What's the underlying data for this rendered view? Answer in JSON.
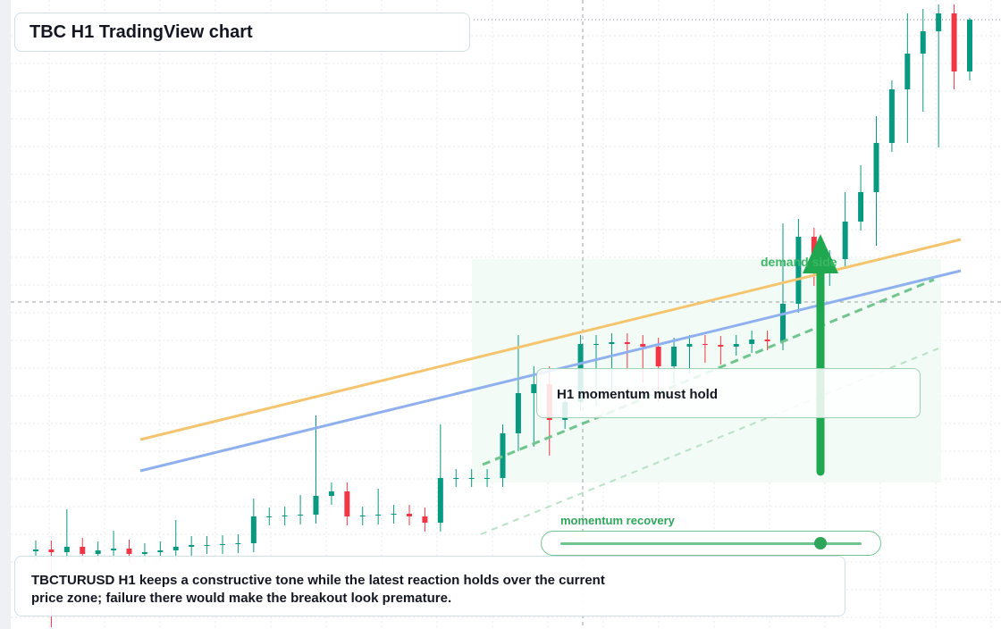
{
  "header": {
    "title": "TBC H1 TradingView chart"
  },
  "labels": {
    "zone": "demand side",
    "callout": "H1 momentum must hold",
    "slider": "momentum recovery"
  },
  "note": "TBCTURUSD H1 keeps a constructive tone while the latest reaction holds over the current price zone; failure there would make the breakout look premature.",
  "chart_data": {
    "type": "candlestick",
    "ylim": [
      0,
      704
    ],
    "up_color": "#089981",
    "down_color": "#f23645",
    "open": [
      87,
      89,
      86,
      92,
      84,
      88,
      90,
      84,
      86,
      88,
      92,
      94,
      94,
      95,
      96,
      126,
      126,
      127,
      128,
      149,
      154,
      126,
      127,
      128,
      129,
      126,
      119,
      169,
      169,
      169,
      169,
      219,
      264,
      274,
      234,
      254,
      319,
      319,
      321,
      319,
      316,
      294,
      316,
      319,
      318,
      316,
      319,
      324,
      322,
      364,
      439,
      404,
      414,
      456,
      489,
      544,
      604,
      644,
      669,
      689,
      624
    ],
    "high": [
      99,
      99,
      134,
      102,
      98,
      110,
      100,
      96,
      98,
      122,
      104,
      104,
      105,
      106,
      146,
      136,
      137,
      150,
      239,
      164,
      164,
      137,
      157,
      139,
      139,
      136,
      229,
      179,
      179,
      179,
      229,
      329,
      294,
      294,
      264,
      329,
      329,
      331,
      331,
      329,
      326,
      326,
      329,
      329,
      328,
      329,
      334,
      334,
      454,
      459,
      449,
      424,
      489,
      519,
      574,
      614,
      689,
      694,
      699,
      699,
      684
    ],
    "low": [
      77,
      2,
      76,
      74,
      74,
      78,
      74,
      74,
      76,
      78,
      82,
      84,
      84,
      85,
      86,
      116,
      116,
      117,
      118,
      139,
      116,
      116,
      117,
      118,
      116,
      109,
      109,
      159,
      159,
      159,
      159,
      199,
      204,
      194,
      224,
      244,
      249,
      259,
      289,
      276,
      254,
      274,
      286,
      298,
      296,
      306,
      309,
      312,
      312,
      354,
      384,
      384,
      404,
      446,
      429,
      534,
      544,
      579,
      539,
      604,
      614
    ],
    "close": [
      89,
      86,
      92,
      84,
      88,
      90,
      84,
      86,
      88,
      92,
      94,
      94,
      95,
      96,
      126,
      126,
      127,
      128,
      149,
      154,
      126,
      127,
      128,
      129,
      126,
      119,
      169,
      169,
      169,
      169,
      219,
      264,
      274,
      234,
      254,
      319,
      319,
      321,
      319,
      316,
      294,
      316,
      319,
      318,
      316,
      319,
      324,
      322,
      364,
      439,
      404,
      414,
      456,
      489,
      544,
      604,
      644,
      669,
      689,
      624,
      682
    ]
  }
}
